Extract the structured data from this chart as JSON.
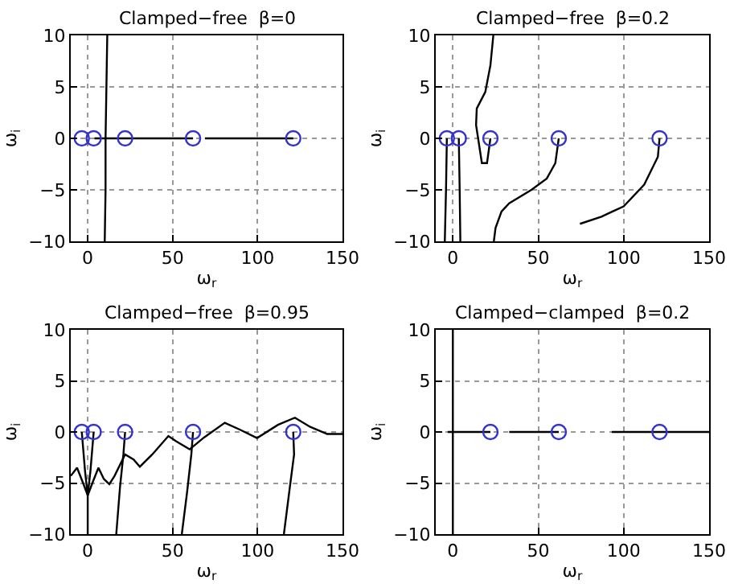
{
  "chart_data": [
    {
      "type": "line",
      "title": "Clamped−free  β=0",
      "xlabel": "ω$_{r}$",
      "ylabel": "ω$_{i}$",
      "xlim": [
        -10,
        150
      ],
      "ylim": [
        -10,
        10
      ],
      "xticks": [
        0,
        50,
        100,
        150
      ],
      "yticks": [
        -10,
        -5,
        0,
        5,
        10
      ],
      "grid": true,
      "series": [
        {
          "type": "line",
          "color": "#000000",
          "x": [
            10,
            10.5,
            10.5,
            11,
            11.5
          ],
          "values": [
            -10,
            -5,
            0,
            5,
            10
          ]
        },
        {
          "type": "line",
          "color": "#000000",
          "x": [
            4,
            62,
            null,
            69,
            121
          ],
          "values": [
            0,
            0,
            null,
            0,
            0
          ]
        },
        {
          "type": "scatter",
          "color": "#3333cc",
          "marker": "circle",
          "x": [
            -3.5,
            3.5,
            22,
            62,
            121
          ],
          "values": [
            0,
            0,
            0,
            0,
            0
          ]
        }
      ]
    },
    {
      "type": "line",
      "title": "Clamped−free  β=0.2",
      "xlabel": "ω$_{r}$",
      "ylabel": "ω$_{i}$",
      "xlim": [
        -10,
        150
      ],
      "ylim": [
        -10,
        10
      ],
      "xticks": [
        0,
        50,
        100,
        150
      ],
      "yticks": [
        -10,
        -5,
        0,
        5,
        10
      ],
      "grid": true,
      "series": [
        {
          "type": "line",
          "color": "#000000",
          "x": [
            -3.5,
            -4,
            -4.7
          ],
          "values": [
            0,
            -5,
            -10
          ]
        },
        {
          "type": "line",
          "color": "#000000",
          "x": [
            3.5,
            4,
            4.4
          ],
          "values": [
            0,
            -5,
            -10
          ]
        },
        {
          "type": "line",
          "color": "#000000",
          "x": [
            22,
            20,
            17,
            13.6,
            14,
            19,
            22,
            23.7
          ],
          "values": [
            0,
            -2.4,
            -2.4,
            1.3,
            2.9,
            4.5,
            7.1,
            10
          ]
        },
        {
          "type": "line",
          "color": "#000000",
          "x": [
            62,
            60,
            55,
            46,
            33,
            28.5,
            25,
            24
          ],
          "values": [
            0,
            -2.4,
            -3.9,
            -5,
            -6.3,
            -7.1,
            -8.7,
            -10
          ]
        },
        {
          "type": "line",
          "color": "#000000",
          "x": [
            121,
            120,
            112,
            100,
            87,
            74.4
          ],
          "values": [
            0,
            -1.8,
            -4.5,
            -6.6,
            -7.6,
            -8.3
          ]
        },
        {
          "type": "scatter",
          "color": "#3333cc",
          "marker": "circle",
          "x": [
            -3.5,
            3.5,
            22,
            62,
            121
          ],
          "values": [
            0,
            0,
            0,
            0,
            0
          ]
        }
      ]
    },
    {
      "type": "line",
      "title": "Clamped−free  β=0.95",
      "xlabel": "ω$_{r}$",
      "ylabel": "ω$_{i}$",
      "xlim": [
        -10,
        150
      ],
      "ylim": [
        -10,
        10
      ],
      "xticks": [
        0,
        50,
        100,
        150
      ],
      "yticks": [
        -10,
        -5,
        0,
        5,
        10
      ],
      "grid": true,
      "series": [
        {
          "type": "line",
          "color": "#000000",
          "x": [
            -10,
            -6.3,
            -3.2,
            0,
            3.2,
            6.3,
            9.5,
            12.7,
            15.8,
            22,
            27,
            30.7,
            38,
            47.5,
            52,
            60,
            68,
            80.7,
            90,
            99.7,
            112,
            122,
            131,
            141,
            150
          ],
          "values": [
            -4.3,
            -3.5,
            -4.8,
            -6.2,
            -4.8,
            -3.5,
            -4.6,
            -5.1,
            -4.3,
            -2.2,
            -2.7,
            -3.4,
            -2.2,
            -0.4,
            -0.9,
            -1.7,
            -0.6,
            0.9,
            0.2,
            -0.6,
            0.7,
            1.4,
            0.5,
            -0.2,
            -0.2
          ]
        },
        {
          "type": "line",
          "color": "#000000",
          "x": [
            -3.5,
            -1.6,
            0,
            0
          ],
          "values": [
            0,
            -3.8,
            -6.2,
            -10
          ]
        },
        {
          "type": "line",
          "color": "#000000",
          "x": [
            3.5,
            1.6,
            0
          ],
          "values": [
            0,
            -3.8,
            -6.2
          ]
        },
        {
          "type": "line",
          "color": "#000000",
          "x": [
            22,
            21,
            19,
            16.8
          ],
          "values": [
            0,
            -2.2,
            -5.4,
            -10
          ]
        },
        {
          "type": "line",
          "color": "#000000",
          "x": [
            62,
            61,
            58.5,
            55.4
          ],
          "values": [
            0,
            -2.2,
            -5.9,
            -10
          ]
        },
        {
          "type": "line",
          "color": "#000000",
          "x": [
            121,
            121.5,
            119,
            115.5
          ],
          "values": [
            0,
            -2.2,
            -5.4,
            -10
          ]
        },
        {
          "type": "scatter",
          "color": "#3333cc",
          "marker": "circle",
          "x": [
            -3.5,
            3.5,
            22,
            62,
            121
          ],
          "values": [
            0,
            0,
            0,
            0,
            0
          ]
        }
      ]
    },
    {
      "type": "line",
      "title": "Clamped−clamped  β=0.2",
      "xlabel": "ω$_{r}$",
      "ylabel": "ω$_{i}$",
      "xlim": [
        -10,
        150
      ],
      "ylim": [
        -10,
        10
      ],
      "xticks": [
        0,
        50,
        100,
        150
      ],
      "yticks": [
        -10,
        -5,
        0,
        5,
        10
      ],
      "grid": true,
      "series": [
        {
          "type": "line",
          "color": "#000000",
          "x": [
            0,
            0
          ],
          "values": [
            -10,
            10
          ]
        },
        {
          "type": "line",
          "color": "#000000",
          "x": [
            -3,
            22,
            null,
            33,
            62,
            null,
            93,
            150
          ],
          "values": [
            0,
            0,
            null,
            0,
            0,
            null,
            0,
            0
          ]
        },
        {
          "type": "scatter",
          "color": "#3333cc",
          "marker": "circle",
          "x": [
            22,
            62,
            121
          ],
          "values": [
            0,
            0,
            0
          ]
        }
      ]
    }
  ]
}
